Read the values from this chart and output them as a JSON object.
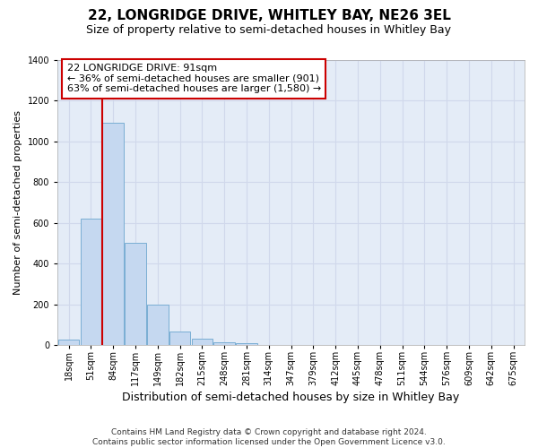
{
  "title_line1": "22, LONGRIDGE DRIVE, WHITLEY BAY, NE26 3EL",
  "title_line2": "Size of property relative to semi-detached houses in Whitley Bay",
  "xlabel": "Distribution of semi-detached houses by size in Whitley Bay",
  "ylabel": "Number of semi-detached properties",
  "footnote": "Contains HM Land Registry data © Crown copyright and database right 2024.\nContains public sector information licensed under the Open Government Licence v3.0.",
  "bar_labels": [
    "18sqm",
    "51sqm",
    "84sqm",
    "117sqm",
    "149sqm",
    "182sqm",
    "215sqm",
    "248sqm",
    "281sqm",
    "314sqm",
    "347sqm",
    "379sqm",
    "412sqm",
    "445sqm",
    "478sqm",
    "511sqm",
    "544sqm",
    "576sqm",
    "609sqm",
    "642sqm",
    "675sqm"
  ],
  "bar_heights": [
    25,
    620,
    1090,
    500,
    200,
    65,
    30,
    15,
    10,
    0,
    0,
    0,
    0,
    0,
    0,
    0,
    0,
    0,
    0,
    0,
    0
  ],
  "bar_color": "#c5d8f0",
  "bar_edge_color": "#7aaed4",
  "vline_color": "#cc0000",
  "vline_x_index": 2,
  "annotation_text": "22 LONGRIDGE DRIVE: 91sqm\n← 36% of semi-detached houses are smaller (901)\n63% of semi-detached houses are larger (1,580) →",
  "annotation_box_color": "#ffffff",
  "annotation_box_edge": "#cc0000",
  "ylim": [
    0,
    1400
  ],
  "yticks": [
    0,
    200,
    400,
    600,
    800,
    1000,
    1200,
    1400
  ],
  "grid_color": "#d0d8eb",
  "bg_color": "#e4ecf7",
  "title_fontsize": 11,
  "subtitle_fontsize": 9,
  "ylabel_fontsize": 8,
  "xlabel_fontsize": 9,
  "tick_fontsize": 7,
  "annot_fontsize": 8,
  "footnote_fontsize": 6.5
}
